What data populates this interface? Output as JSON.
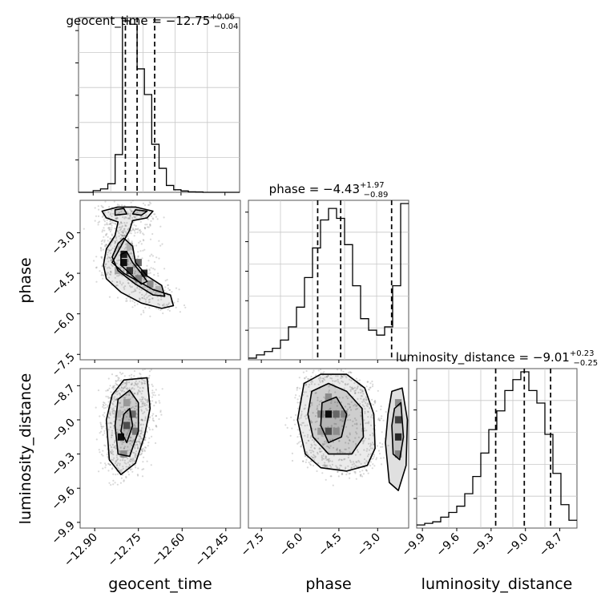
{
  "chart_data": [
    {
      "type": "histogram",
      "parameter": "geocent_time",
      "title_main": "geocent_time = −12.75",
      "title_sup": "+0.06",
      "title_sub": "−0.04",
      "xlim": [
        -12.95,
        -12.4
      ],
      "bin_edges": [
        -12.95,
        -12.925,
        -12.9,
        -12.875,
        -12.85,
        -12.825,
        -12.8,
        -12.775,
        -12.75,
        -12.725,
        -12.7,
        -12.675,
        -12.65,
        -12.625,
        -12.6,
        -12.575,
        -12.55,
        -12.525,
        -12.5,
        -12.475,
        -12.45,
        -12.425,
        -12.4
      ],
      "counts": [
        0,
        0,
        1,
        2,
        5,
        22,
        100,
        98,
        72,
        57,
        28,
        14,
        4,
        1.5,
        0.8,
        0.3,
        0.2,
        0,
        0,
        0,
        0,
        0
      ],
      "quantiles": [
        -12.79,
        -12.75,
        -12.69
      ]
    },
    {
      "type": "histogram",
      "parameter": "phase",
      "title_main": "phase = −4.43",
      "title_sup": "+1.97",
      "title_sub": "−0.89",
      "xlim": [
        -8.0,
        -1.8
      ],
      "bin_edges": [
        -8.0,
        -7.69,
        -7.38,
        -7.07,
        -6.76,
        -6.45,
        -6.14,
        -5.83,
        -5.52,
        -5.21,
        -4.9,
        -4.59,
        -4.28,
        -3.97,
        -3.66,
        -3.35,
        -3.04,
        -2.73,
        -2.42,
        -2.11,
        -1.8
      ],
      "counts": [
        1,
        3,
        5,
        7,
        12,
        20,
        32,
        50,
        68,
        85,
        92,
        86,
        70,
        45,
        25,
        18,
        15,
        20,
        45,
        95
      ],
      "quantiles": [
        -5.32,
        -4.43,
        -2.46
      ]
    },
    {
      "type": "histogram",
      "parameter": "luminosity_distance",
      "title_main": "luminosity_distance = −9.01",
      "title_sup": "+0.23",
      "title_sub": "−0.25",
      "xlim": [
        -9.95,
        -8.55
      ],
      "bin_edges": [
        -9.95,
        -9.88,
        -9.81,
        -9.74,
        -9.67,
        -9.6,
        -9.53,
        -9.46,
        -9.39,
        -9.32,
        -9.25,
        -9.18,
        -9.11,
        -9.04,
        -8.97,
        -8.9,
        -8.83,
        -8.76,
        -8.69,
        -8.62,
        -8.55
      ],
      "counts": [
        2,
        3,
        4,
        7,
        10,
        14,
        22,
        33,
        48,
        63,
        75,
        88,
        95,
        100,
        88,
        80,
        60,
        35,
        15,
        5
      ],
      "quantiles": [
        -9.26,
        -9.01,
        -8.78
      ]
    },
    {
      "type": "scatter-contour",
      "x": "geocent_time",
      "y": "phase",
      "xlim": [
        -12.95,
        -12.4
      ],
      "ylim": [
        -7.7,
        -1.8
      ],
      "contours": [
        [
          [
            -12.875,
            -2.2
          ],
          [
            -12.82,
            -2.05
          ],
          [
            -12.76,
            -2.05
          ],
          [
            -12.7,
            -2.2
          ],
          [
            -12.72,
            -2.45
          ],
          [
            -12.77,
            -2.55
          ],
          [
            -12.78,
            -2.9
          ],
          [
            -12.8,
            -3.3
          ],
          [
            -12.82,
            -3.7
          ],
          [
            -12.84,
            -4.1
          ],
          [
            -12.8,
            -4.5
          ],
          [
            -12.75,
            -4.8
          ],
          [
            -12.7,
            -5.1
          ],
          [
            -12.64,
            -5.3
          ],
          [
            -12.63,
            -5.7
          ],
          [
            -12.67,
            -5.8
          ],
          [
            -12.74,
            -5.6
          ],
          [
            -12.81,
            -5.2
          ],
          [
            -12.86,
            -4.7
          ],
          [
            -12.87,
            -4.2
          ],
          [
            -12.86,
            -3.6
          ],
          [
            -12.83,
            -3.1
          ],
          [
            -12.82,
            -2.6
          ],
          [
            -12.86,
            -2.45
          ]
        ],
        [
          [
            -12.83,
            -2.15
          ],
          [
            -12.8,
            -2.1
          ],
          [
            -12.79,
            -2.3
          ],
          [
            -12.83,
            -2.35
          ]
        ],
        [
          [
            -12.76,
            -2.15
          ],
          [
            -12.72,
            -2.2
          ],
          [
            -12.74,
            -2.35
          ],
          [
            -12.77,
            -2.3
          ]
        ],
        [
          [
            -12.82,
            -3.4
          ],
          [
            -12.8,
            -3.2
          ],
          [
            -12.77,
            -3.5
          ],
          [
            -12.76,
            -4.1
          ],
          [
            -12.72,
            -4.6
          ],
          [
            -12.67,
            -4.95
          ],
          [
            -12.66,
            -5.35
          ],
          [
            -12.7,
            -5.3
          ],
          [
            -12.76,
            -4.9
          ],
          [
            -12.82,
            -4.4
          ],
          [
            -12.84,
            -3.9
          ]
        ],
        [
          [
            -12.81,
            -3.8
          ],
          [
            -12.79,
            -3.7
          ],
          [
            -12.77,
            -4.1
          ],
          [
            -12.74,
            -4.5
          ],
          [
            -12.72,
            -4.8
          ],
          [
            -12.74,
            -4.9
          ],
          [
            -12.78,
            -4.5
          ],
          [
            -12.81,
            -4.2
          ]
        ]
      ],
      "hist_cells": [
        [
          -12.8,
          -3.8,
          0.9
        ],
        [
          -12.8,
          -4.1,
          0.95
        ],
        [
          -12.78,
          -4.4,
          0.8
        ],
        [
          -12.75,
          -4.1,
          0.6
        ],
        [
          -12.73,
          -4.5,
          0.85
        ],
        [
          -12.75,
          -4.7,
          0.5
        ],
        [
          -12.71,
          -4.9,
          0.45
        ],
        [
          -12.82,
          -4.4,
          0.35
        ],
        [
          -12.78,
          -3.5,
          0.3
        ],
        [
          -12.68,
          -5.1,
          0.3
        ]
      ]
    },
    {
      "type": "scatter-contour",
      "x": "geocent_time",
      "y": "luminosity_distance",
      "xlim": [
        -12.95,
        -12.4
      ],
      "ylim": [
        -9.95,
        -8.55
      ],
      "contours": [
        [
          [
            -12.84,
            -8.78
          ],
          [
            -12.8,
            -8.65
          ],
          [
            -12.72,
            -8.63
          ],
          [
            -12.71,
            -8.9
          ],
          [
            -12.73,
            -9.15
          ],
          [
            -12.76,
            -9.38
          ],
          [
            -12.81,
            -9.48
          ],
          [
            -12.85,
            -9.35
          ],
          [
            -12.86,
            -9.0
          ]
        ],
        [
          [
            -12.82,
            -8.82
          ],
          [
            -12.78,
            -8.74
          ],
          [
            -12.75,
            -8.85
          ],
          [
            -12.75,
            -9.1
          ],
          [
            -12.78,
            -9.32
          ],
          [
            -12.82,
            -9.3
          ],
          [
            -12.83,
            -9.05
          ]
        ],
        [
          [
            -12.8,
            -8.95
          ],
          [
            -12.78,
            -8.9
          ],
          [
            -12.77,
            -9.05
          ],
          [
            -12.79,
            -9.2
          ],
          [
            -12.81,
            -9.1
          ]
        ]
      ],
      "hist_cells": [
        [
          -12.79,
          -9.05,
          0.7
        ],
        [
          -12.81,
          -9.15,
          0.95
        ],
        [
          -12.77,
          -8.95,
          0.6
        ],
        [
          -12.79,
          -8.85,
          0.4
        ],
        [
          -12.76,
          -9.1,
          0.55
        ],
        [
          -12.8,
          -9.3,
          0.45
        ],
        [
          -12.82,
          -8.95,
          0.3
        ]
      ]
    },
    {
      "type": "scatter-contour",
      "x": "phase",
      "y": "luminosity_distance",
      "xlim": [
        -8.0,
        -1.8
      ],
      "ylim": [
        -9.95,
        -8.55
      ],
      "contours": [
        [
          [
            -5.85,
            -8.68
          ],
          [
            -5.2,
            -8.6
          ],
          [
            -4.2,
            -8.6
          ],
          [
            -3.5,
            -8.72
          ],
          [
            -3.15,
            -8.95
          ],
          [
            -3.1,
            -9.25
          ],
          [
            -3.4,
            -9.4
          ],
          [
            -4.2,
            -9.45
          ],
          [
            -5.2,
            -9.42
          ],
          [
            -5.8,
            -9.3
          ],
          [
            -6.1,
            -9.0
          ]
        ],
        [
          [
            -5.55,
            -8.75
          ],
          [
            -4.9,
            -8.68
          ],
          [
            -4.2,
            -8.75
          ],
          [
            -3.6,
            -8.9
          ],
          [
            -3.55,
            -9.15
          ],
          [
            -4.0,
            -9.3
          ],
          [
            -4.9,
            -9.3
          ],
          [
            -5.5,
            -9.15
          ],
          [
            -5.7,
            -8.95
          ]
        ],
        [
          [
            -5.15,
            -8.85
          ],
          [
            -4.6,
            -8.8
          ],
          [
            -4.2,
            -8.95
          ],
          [
            -4.4,
            -9.15
          ],
          [
            -4.9,
            -9.2
          ],
          [
            -5.2,
            -9.05
          ]
        ],
        [
          [
            -2.45,
            -8.75
          ],
          [
            -2.05,
            -8.72
          ],
          [
            -1.85,
            -9.0
          ],
          [
            -1.9,
            -9.4
          ],
          [
            -2.2,
            -9.62
          ],
          [
            -2.55,
            -9.55
          ],
          [
            -2.7,
            -9.2
          ],
          [
            -2.6,
            -8.95
          ]
        ],
        [
          [
            -2.35,
            -8.9
          ],
          [
            -2.1,
            -8.85
          ],
          [
            -2.0,
            -9.15
          ],
          [
            -2.15,
            -9.35
          ],
          [
            -2.4,
            -9.3
          ],
          [
            -2.45,
            -9.05
          ]
        ]
      ],
      "hist_cells": [
        [
          -4.9,
          -8.95,
          0.95
        ],
        [
          -4.6,
          -8.95,
          0.6
        ],
        [
          -4.9,
          -9.1,
          0.7
        ],
        [
          -5.2,
          -8.95,
          0.5
        ],
        [
          -4.3,
          -8.95,
          0.5
        ],
        [
          -4.6,
          -9.1,
          0.45
        ],
        [
          -5.2,
          -9.1,
          0.4
        ],
        [
          -4.9,
          -8.8,
          0.45
        ],
        [
          -2.2,
          -9.0,
          0.75
        ],
        [
          -2.2,
          -9.15,
          0.85
        ],
        [
          -2.2,
          -9.3,
          0.5
        ],
        [
          -2.2,
          -8.85,
          0.45
        ]
      ]
    }
  ],
  "axes": {
    "xlabels": [
      "geocent_time",
      "phase",
      "luminosity_distance"
    ],
    "ylabels": [
      "phase",
      "luminosity_distance"
    ],
    "geocent_ticks": [
      "−12.90",
      "−12.75",
      "−12.60",
      "−12.45"
    ],
    "phase_ticks": [
      "−7.5",
      "−6.0",
      "−4.5",
      "−3.0"
    ],
    "distance_ticks": [
      "−9.9",
      "−9.6",
      "−9.3",
      "−9.0",
      "−8.7"
    ]
  }
}
